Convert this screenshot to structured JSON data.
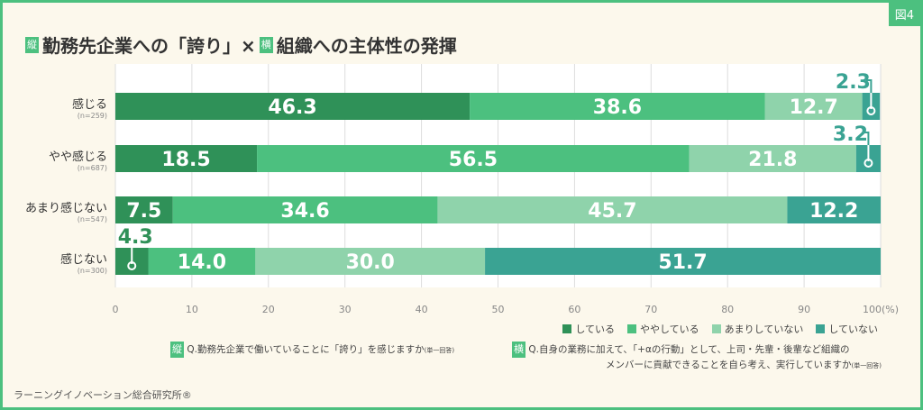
{
  "figure_label": "図4",
  "title": {
    "tag_v": "縦",
    "part1": "勤務先企業への「誇り」×",
    "tag_h": "横",
    "part2": "組織への主体性の発揮"
  },
  "chart_data": {
    "type": "bar",
    "stacked": true,
    "orientation": "horizontal",
    "categories": [
      "感じる",
      "やや感じる",
      "あまり感じない",
      "感じない"
    ],
    "category_n": [
      "(n=259)",
      "(n=687)",
      "(n=547)",
      "(n=300)"
    ],
    "series": [
      {
        "name": "している",
        "color": "#2f9158",
        "values": [
          46.3,
          18.5,
          7.5,
          4.3
        ]
      },
      {
        "name": "ややしている",
        "color": "#4cc07f",
        "values": [
          38.6,
          56.5,
          34.6,
          14.0
        ]
      },
      {
        "name": "あまりしていない",
        "color": "#8fd3ab",
        "values": [
          12.7,
          21.8,
          45.7,
          30.0
        ]
      },
      {
        "name": "していない",
        "color": "#3aa393",
        "values": [
          2.3,
          3.2,
          12.2,
          51.7
        ]
      }
    ],
    "xlim": [
      0,
      100
    ],
    "xticks": [
      "0",
      "10",
      "20",
      "30",
      "40",
      "50",
      "60",
      "70",
      "80",
      "90",
      "100(%)"
    ],
    "grid": true,
    "legend": "bottom-right"
  },
  "questions": {
    "v_tag": "縦",
    "v_text": "Q.勤務先企業で働いていることに「誇り」を感じますか",
    "v_note": "(単一回答)",
    "h_tag": "横",
    "h_line1": "Q.自身の業務に加えて、「+αの行動」として、上司・先輩・後輩など組織の",
    "h_line2": "メンバーに貢献できることを自ら考え、実行していますか",
    "h_note": "(単一回答)"
  },
  "source": "ラーニングイノベーション総合研究所®"
}
